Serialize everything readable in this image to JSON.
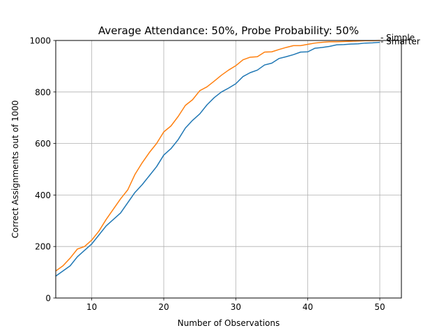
{
  "chart_data": {
    "type": "line",
    "title": "Average Attendance: 50%, Probe Probability: 50%",
    "xlabel": "Number of Observations",
    "ylabel": "Correct Assignments out of 1000",
    "xlim": [
      5,
      53
    ],
    "ylim": [
      0,
      1000
    ],
    "xticks": [
      10,
      20,
      30,
      40,
      50
    ],
    "yticks": [
      0,
      200,
      400,
      600,
      800,
      1000
    ],
    "grid": true,
    "legend": "none",
    "x": [
      5,
      6,
      7,
      8,
      9,
      10,
      11,
      12,
      13,
      14,
      15,
      16,
      17,
      18,
      19,
      20,
      21,
      22,
      23,
      24,
      25,
      26,
      27,
      28,
      29,
      30,
      31,
      32,
      33,
      34,
      35,
      36,
      37,
      38,
      39,
      40,
      41,
      42,
      43,
      44,
      45,
      46,
      47,
      48,
      49,
      50
    ],
    "series": [
      {
        "name": "Smarter",
        "color": "#1f77b4",
        "values": [
          85,
          105,
          125,
          160,
          185,
          210,
          245,
          280,
          305,
          330,
          370,
          410,
          440,
          475,
          510,
          555,
          580,
          615,
          660,
          690,
          715,
          750,
          778,
          800,
          815,
          832,
          860,
          875,
          885,
          905,
          912,
          930,
          937,
          945,
          955,
          956,
          970,
          973,
          977,
          983,
          984,
          986,
          987,
          990,
          991,
          993
        ]
      },
      {
        "name": "Simple",
        "color": "#ff7f0e",
        "values": [
          105,
          125,
          155,
          190,
          200,
          225,
          260,
          305,
          345,
          385,
          420,
          480,
          525,
          565,
          600,
          645,
          668,
          705,
          748,
          770,
          805,
          820,
          842,
          865,
          885,
          902,
          925,
          935,
          937,
          955,
          956,
          965,
          973,
          980,
          980,
          985,
          990,
          993,
          995,
          995,
          996,
          997,
          998,
          999,
          999,
          1000
        ]
      }
    ]
  }
}
